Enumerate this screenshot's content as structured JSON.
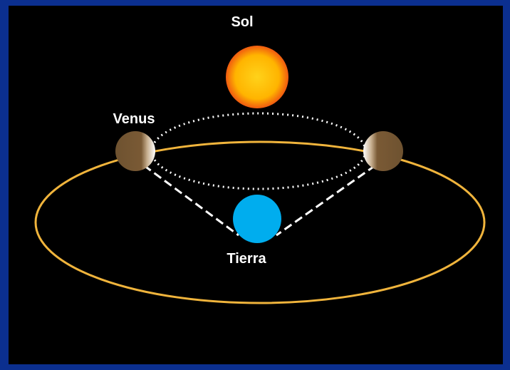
{
  "labels": {
    "sun": "Sol",
    "venus": "Venus",
    "earth": "Tierra"
  }
}
